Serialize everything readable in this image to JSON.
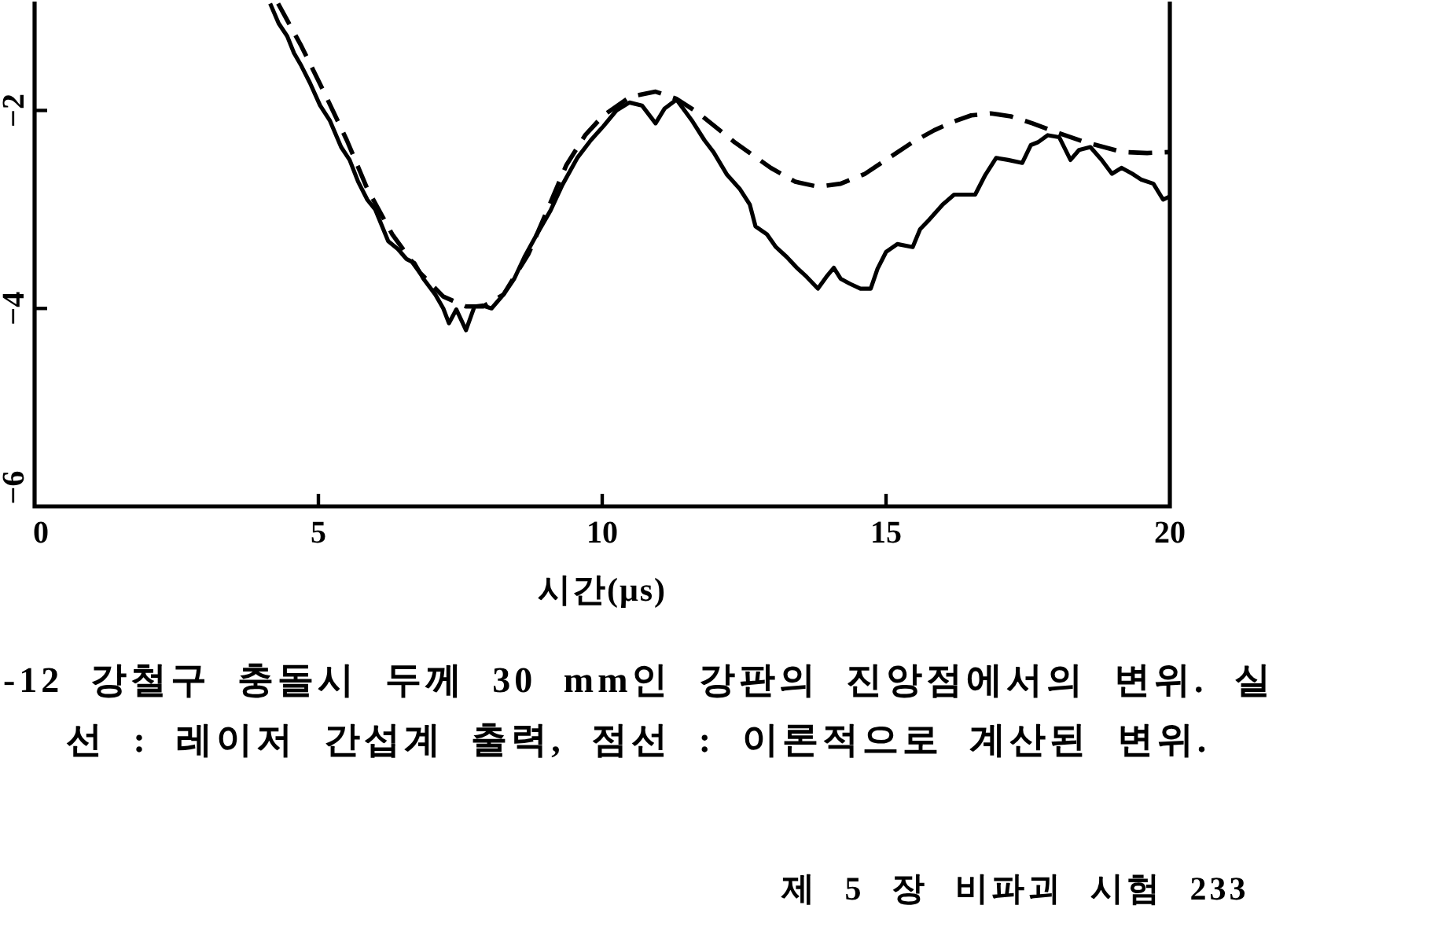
{
  "chart_data": {
    "type": "line",
    "xlabel": "시간(μs)",
    "xlim": [
      0,
      20
    ],
    "xticks": [
      0,
      5,
      10,
      15,
      20
    ],
    "ylim": [
      -6,
      -0.9
    ],
    "yticks": [
      -6,
      -4,
      -2
    ],
    "annotations": [
      "-12 강철구 충돌시 두께 30 mm인 강판의 진앙점에서의 변위. 실선 : 레이저 간섭계 출력, 점선 : 이론적으로 계산된 변위.",
      "제 5 장 비파괴 시험 233"
    ],
    "series": [
      {
        "color": "#000000",
        "line_style": "solid",
        "x": [
          4.15,
          4.3,
          4.45,
          4.57,
          4.7,
          4.85,
          5.03,
          5.2,
          5.4,
          5.55,
          5.7,
          5.86,
          6.0,
          6.23,
          6.4,
          6.55,
          6.69,
          6.85,
          7.06,
          7.2,
          7.3,
          7.43,
          7.6,
          7.75,
          7.89,
          8.05,
          8.26,
          8.45,
          8.63,
          8.85,
          9.09,
          9.3,
          9.56,
          9.8,
          10.02,
          10.25,
          10.48,
          10.7,
          10.94,
          11.1,
          11.31,
          11.45,
          11.59,
          11.8,
          11.96,
          12.2,
          12.42,
          12.6,
          12.7,
          12.9,
          13.06,
          13.25,
          13.43,
          13.6,
          13.8,
          13.95,
          14.08,
          14.2,
          14.36,
          14.55,
          14.73,
          14.85,
          15.0,
          15.2,
          15.47,
          15.6,
          15.75,
          16.0,
          16.2,
          16.4,
          16.57,
          16.75,
          16.94,
          17.15,
          17.4,
          17.55,
          17.68,
          17.85,
          18.05,
          18.25,
          18.4,
          18.6,
          18.8,
          18.98,
          19.15,
          19.34,
          19.5,
          19.71,
          19.88,
          20.0
        ],
        "values": [
          -0.92,
          -1.12,
          -1.25,
          -1.42,
          -1.55,
          -1.72,
          -1.95,
          -2.1,
          -2.37,
          -2.5,
          -2.72,
          -2.9,
          -3.0,
          -3.32,
          -3.4,
          -3.5,
          -3.54,
          -3.7,
          -3.86,
          -4.0,
          -4.15,
          -4.01,
          -4.22,
          -3.98,
          -3.97,
          -4.0,
          -3.86,
          -3.7,
          -3.48,
          -3.25,
          -3.01,
          -2.75,
          -2.48,
          -2.3,
          -2.16,
          -2.0,
          -1.92,
          -1.95,
          -2.13,
          -1.98,
          -1.89,
          -2.0,
          -2.11,
          -2.3,
          -2.42,
          -2.65,
          -2.79,
          -2.95,
          -3.17,
          -3.25,
          -3.38,
          -3.48,
          -3.59,
          -3.68,
          -3.8,
          -3.68,
          -3.59,
          -3.7,
          -3.75,
          -3.8,
          -3.8,
          -3.6,
          -3.43,
          -3.35,
          -3.38,
          -3.2,
          -3.11,
          -2.95,
          -2.85,
          -2.85,
          -2.85,
          -2.65,
          -2.48,
          -2.5,
          -2.53,
          -2.35,
          -2.32,
          -2.25,
          -2.27,
          -2.5,
          -2.4,
          -2.37,
          -2.5,
          -2.64,
          -2.58,
          -2.64,
          -2.7,
          -2.74,
          -2.9,
          -2.87
        ]
      },
      {
        "color": "#000000",
        "line_style": "dashed",
        "x": [
          4.29,
          4.7,
          5.12,
          5.5,
          5.86,
          6.3,
          6.79,
          7.2,
          7.6,
          7.9,
          8.26,
          8.7,
          9.0,
          9.37,
          9.7,
          10.02,
          10.5,
          10.94,
          11.3,
          11.68,
          12.33,
          12.97,
          13.4,
          13.8,
          14.2,
          14.63,
          15.05,
          15.47,
          15.85,
          16.2,
          16.5,
          16.85,
          17.2,
          17.58,
          18.0,
          18.51,
          19.16,
          19.6,
          20.0
        ],
        "values": [
          -0.92,
          -1.35,
          -1.84,
          -2.3,
          -2.79,
          -3.25,
          -3.64,
          -3.88,
          -3.98,
          -3.98,
          -3.86,
          -3.45,
          -3.05,
          -2.55,
          -2.25,
          -2.05,
          -1.86,
          -1.81,
          -1.88,
          -2.02,
          -2.32,
          -2.58,
          -2.72,
          -2.77,
          -2.74,
          -2.64,
          -2.48,
          -2.32,
          -2.2,
          -2.11,
          -2.05,
          -2.03,
          -2.06,
          -2.13,
          -2.22,
          -2.32,
          -2.42,
          -2.43,
          -2.42
        ]
      }
    ]
  }
}
